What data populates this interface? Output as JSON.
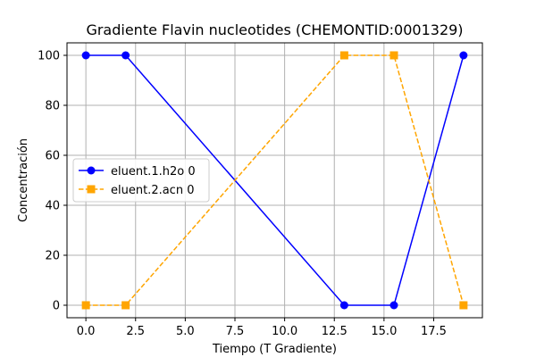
{
  "chart_data": {
    "type": "line",
    "title": "Gradiente Flavin nucleotides (CHEMONTID:0001329)",
    "xlabel": "Tiempo (T Gradiente)",
    "ylabel": "Concentración",
    "xlim": [
      -0.95,
      19.95
    ],
    "ylim": [
      -5,
      105
    ],
    "xticks": [
      0.0,
      2.5,
      5.0,
      7.5,
      10.0,
      12.5,
      15.0,
      17.5
    ],
    "xtick_labels": [
      "0.0",
      "2.5",
      "5.0",
      "7.5",
      "10.0",
      "12.5",
      "15.0",
      "17.5"
    ],
    "yticks": [
      0,
      20,
      40,
      60,
      80,
      100
    ],
    "ytick_labels": [
      "0",
      "20",
      "40",
      "60",
      "80",
      "100"
    ],
    "grid": true,
    "legend_position": "center-left",
    "series": [
      {
        "name": "eluent.1.h2o 0",
        "x": [
          0,
          2,
          13,
          15.5,
          19
        ],
        "y": [
          100,
          100,
          0,
          0,
          100
        ],
        "color": "#0000ff",
        "marker": "circle",
        "linestyle": "solid"
      },
      {
        "name": "eluent.2.acn 0",
        "x": [
          0,
          2,
          13,
          15.5,
          19
        ],
        "y": [
          0,
          0,
          100,
          100,
          0
        ],
        "color": "#ffa500",
        "marker": "square",
        "linestyle": "dashed"
      }
    ]
  }
}
